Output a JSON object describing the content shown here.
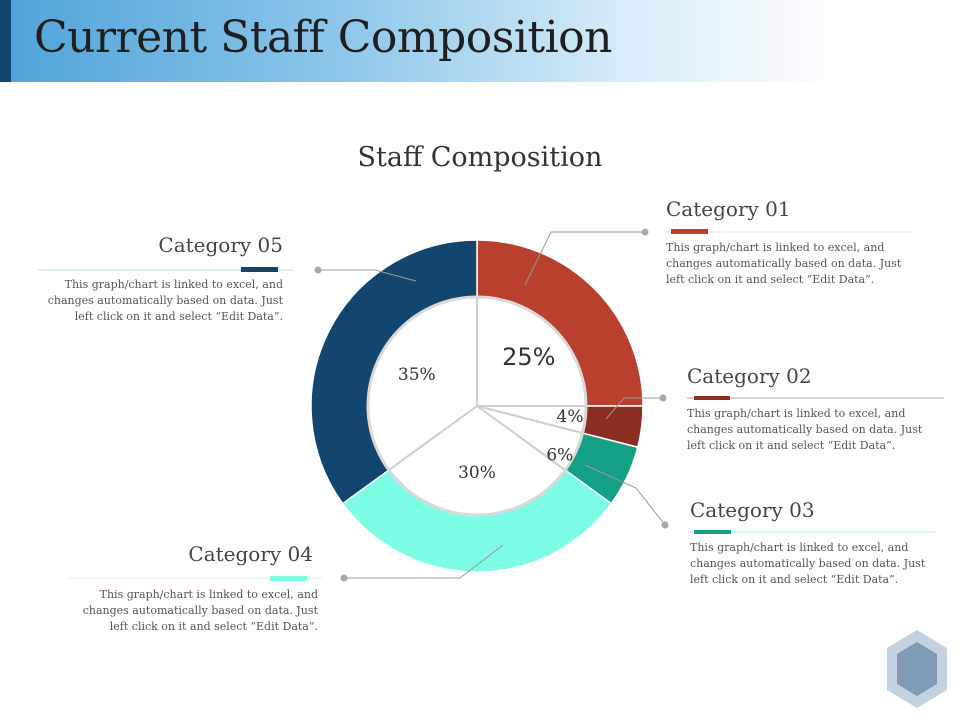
{
  "page": {
    "title": "Current Staff Composition"
  },
  "chart_data": {
    "type": "pie",
    "title": "Staff Composition",
    "slices": [
      {
        "label": "Category 01",
        "value": 25,
        "data_label": "25%",
        "color": "#b8402c"
      },
      {
        "label": "Category 02",
        "value": 4,
        "data_label": "4%",
        "color": "#8a2e22"
      },
      {
        "label": "Category 03",
        "value": 6,
        "data_label": "6%",
        "color": "#14a085"
      },
      {
        "label": "Category 04",
        "value": 30,
        "data_label": "30%",
        "color": "#7dfde3"
      },
      {
        "label": "Category 05",
        "value": 35,
        "data_label": "35%",
        "color": "#12466f"
      }
    ]
  },
  "callouts": {
    "cat01": {
      "title": "Category 01",
      "desc": "This graph/chart is linked to excel, and changes automatically based on data. Just left click on it and select “Edit Data”."
    },
    "cat02": {
      "title": "Category 02",
      "desc": "This graph/chart is linked to excel, and changes automatically based on data. Just left click on it and select “Edit Data”."
    },
    "cat03": {
      "title": "Category 03",
      "desc": "This graph/chart is linked to excel, and changes automatically based on data. Just left click on it and select “Edit Data”."
    },
    "cat04": {
      "title": "Category 04",
      "desc": "This graph/chart is linked to excel, and changes automatically based on data. Just left click on it and select “Edit Data”."
    },
    "cat05": {
      "title": "Category 05",
      "desc": "This graph/chart is linked to excel, and changes automatically based on data. Just left click on it and select “Edit Data”."
    }
  }
}
